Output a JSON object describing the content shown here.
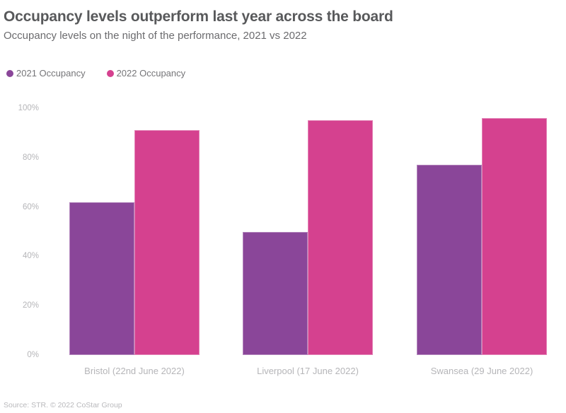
{
  "header": {
    "title": "Occupancy levels outperform last year across the board",
    "subtitle": "Occupancy levels on the night of the performance, 2021 vs 2022"
  },
  "footer": {
    "source": "Source: STR. © 2022 CoStar Group"
  },
  "chart_data": {
    "type": "bar",
    "title": "Occupancy levels outperform last year across the board",
    "subtitle": "Occupancy levels on the night of the performance, 2021 vs 2022",
    "categories": [
      "Bristol (22nd June 2022)",
      "Liverpool (17 June 2022)",
      "Swansea (29 June 2022)"
    ],
    "series": [
      {
        "name": "2021 Occupancy",
        "color": "#8A4699",
        "values": [
          62,
          50,
          77
        ]
      },
      {
        "name": "2022 Occupancy",
        "color": "#D5418F",
        "values": [
          91,
          95,
          96
        ]
      }
    ],
    "ylabel": "",
    "xlabel": "",
    "ylim": [
      0,
      100
    ],
    "ytick_labels": [
      "0%",
      "20%",
      "40%",
      "60%",
      "80%",
      "100%"
    ],
    "grid": false,
    "axis_lines": false,
    "legend_position": "top-left"
  }
}
